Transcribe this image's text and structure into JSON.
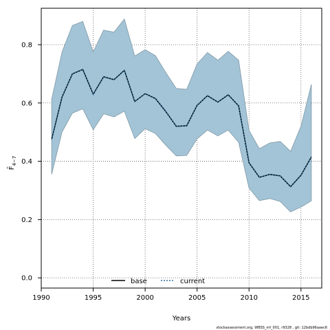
{
  "chart_data": {
    "type": "line",
    "xlabel": "Years",
    "ylabel": "F̄4−7",
    "ylabel_main": "F̄",
    "ylabel_sub": "4−7",
    "xlim": [
      1990,
      2017
    ],
    "ylim": [
      -0.035,
      0.925
    ],
    "xticks": [
      1990,
      1995,
      2000,
      2005,
      2010,
      2015
    ],
    "yticks": [
      0.0,
      0.2,
      0.4,
      0.6,
      0.8
    ],
    "ytick_labels": [
      "0.0",
      "0.2",
      "0.4",
      "0.6",
      "0.8"
    ],
    "grid": true,
    "legend_position": "bottom-center",
    "footer": "stockassessment.org, WBSS_mf_001, r9328 , git: 12bdb96aaec6",
    "colors": {
      "band": "#a3c4d6",
      "band_edge": "#7f98a6",
      "line": "#000000",
      "current": "#2a6fa0"
    },
    "x": [
      1991,
      1992,
      1993,
      1994,
      1995,
      1996,
      1997,
      1998,
      1999,
      2000,
      2001,
      2002,
      2003,
      2004,
      2005,
      2006,
      2007,
      2008,
      2009,
      2010,
      2011,
      2012,
      2013,
      2014,
      2015,
      2016
    ],
    "series": [
      {
        "name": "base",
        "style": "solid",
        "values": [
          0.475,
          0.62,
          0.7,
          0.715,
          0.63,
          0.69,
          0.68,
          0.712,
          0.605,
          0.632,
          0.615,
          0.57,
          0.52,
          0.522,
          0.592,
          0.625,
          0.603,
          0.628,
          0.59,
          0.395,
          0.345,
          0.355,
          0.35,
          0.313,
          0.352,
          0.415
        ],
        "lower": [
          0.355,
          0.5,
          0.565,
          0.58,
          0.508,
          0.563,
          0.552,
          0.572,
          0.478,
          0.512,
          0.495,
          0.455,
          0.418,
          0.42,
          0.477,
          0.507,
          0.487,
          0.507,
          0.465,
          0.308,
          0.265,
          0.272,
          0.262,
          0.226,
          0.243,
          0.264
        ],
        "upper": [
          0.612,
          0.775,
          0.866,
          0.88,
          0.775,
          0.85,
          0.843,
          0.888,
          0.761,
          0.783,
          0.762,
          0.704,
          0.65,
          0.647,
          0.734,
          0.773,
          0.747,
          0.777,
          0.747,
          0.506,
          0.443,
          0.463,
          0.468,
          0.434,
          0.52,
          0.664
        ]
      },
      {
        "name": "current",
        "style": "dotted",
        "values": [
          0.475,
          0.62,
          0.7,
          0.715,
          0.63,
          0.69,
          0.68,
          0.712,
          0.605,
          0.632,
          0.615,
          0.57,
          0.52,
          0.522,
          0.592,
          0.625,
          0.603,
          0.628,
          0.59,
          0.395,
          0.345,
          0.355,
          0.35,
          0.313,
          0.352,
          0.415
        ]
      }
    ]
  }
}
